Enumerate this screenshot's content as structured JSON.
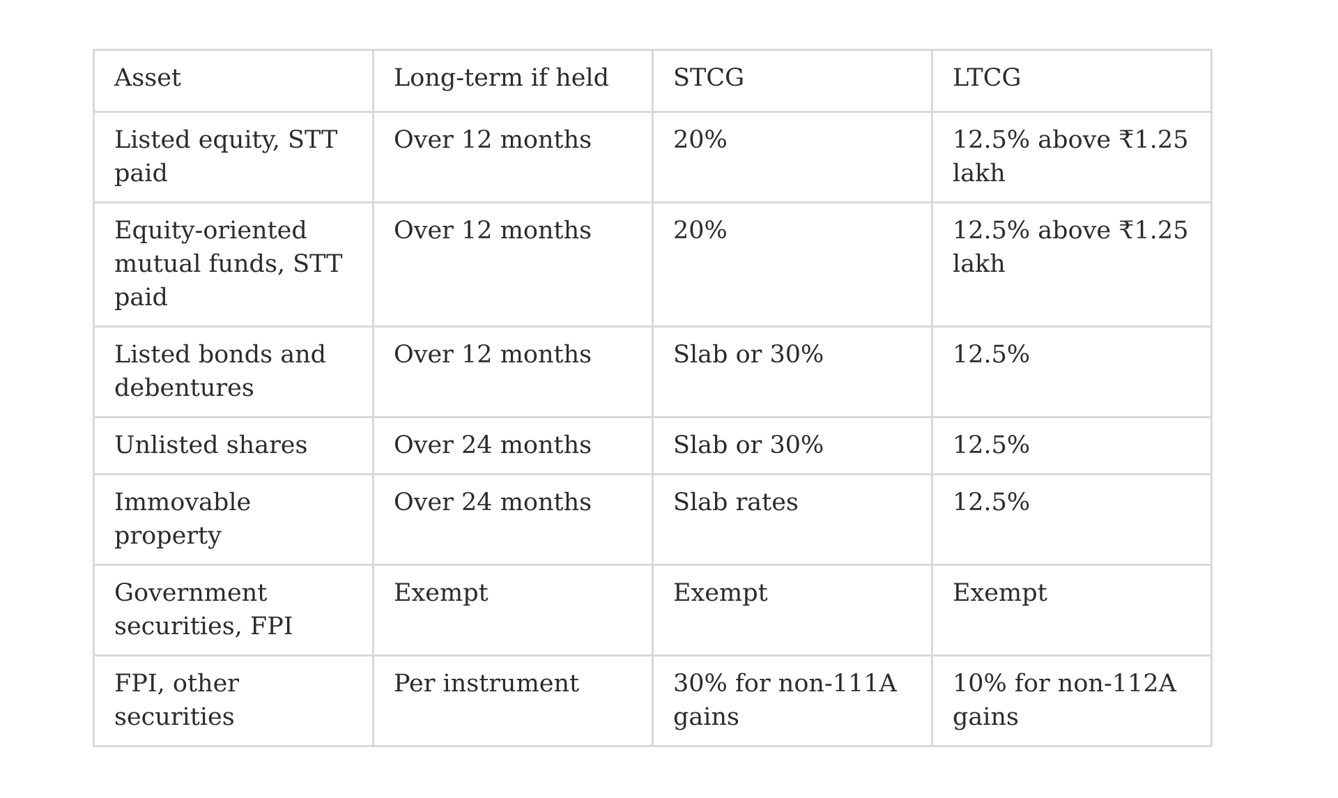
{
  "table": {
    "headers": [
      "Asset",
      "Long-term if held",
      "STCG",
      "LTCG"
    ],
    "rows": [
      [
        "Listed equity, STT paid",
        "Over 12 months",
        "20%",
        "12.5% above ₹1.25 lakh"
      ],
      [
        "Equity-oriented mutual funds, STT paid",
        "Over 12 months",
        "20%",
        "12.5% above ₹1.25 lakh"
      ],
      [
        "Listed bonds and debentures",
        "Over 12 months",
        "Slab or 30%",
        "12.5%"
      ],
      [
        "Unlisted shares",
        "Over 24 months",
        "Slab or 30%",
        "12.5%"
      ],
      [
        "Immovable property",
        "Over 24 months",
        "Slab rates",
        "12.5%"
      ],
      [
        "Government securities, FPI",
        "Exempt",
        "Exempt",
        "Exempt"
      ],
      [
        "FPI, other securities",
        "Per instrument",
        "30% for non-111A gains",
        "10% for non-112A gains"
      ]
    ]
  }
}
